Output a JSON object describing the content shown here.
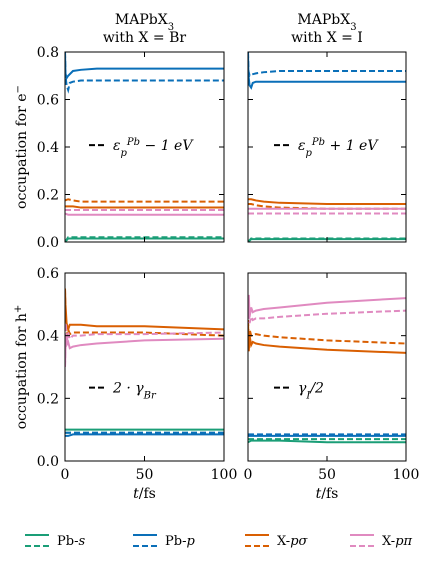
{
  "chart_data": [
    {
      "type": "line",
      "title_line1": "MAPbX3",
      "title_line2": "with X = Br",
      "ylabel": "occupation for e−",
      "annotation": "ε_p^Pb − 1 eV",
      "ylim": [
        0,
        0.8
      ],
      "xlim": [
        0,
        100
      ],
      "yticks": [
        "0.0",
        "0.2",
        "0.4",
        "0.6",
        "0.8"
      ],
      "series": [
        {
          "key": "Pb-s",
          "style": "solid",
          "x": [
            0,
            2,
            5,
            10,
            20,
            50,
            100
          ],
          "y": [
            0.0,
            0.015,
            0.015,
            0.015,
            0.015,
            0.015,
            0.015
          ]
        },
        {
          "key": "Pb-s",
          "style": "dashed",
          "x": [
            0,
            2,
            5,
            10,
            20,
            50,
            100
          ],
          "y": [
            0.0,
            0.02,
            0.02,
            0.02,
            0.02,
            0.02,
            0.02
          ]
        },
        {
          "key": "Pb-p",
          "style": "solid",
          "x": [
            0,
            0.3,
            1,
            2,
            5,
            10,
            20,
            50,
            100
          ],
          "y": [
            0.8,
            0.71,
            0.69,
            0.7,
            0.72,
            0.725,
            0.73,
            0.73,
            0.73
          ]
        },
        {
          "key": "Pb-p",
          "style": "dashed",
          "x": [
            0,
            0.3,
            1,
            2,
            3,
            5,
            10,
            20,
            50,
            100
          ],
          "y": [
            0.8,
            0.7,
            0.66,
            0.64,
            0.67,
            0.675,
            0.68,
            0.68,
            0.68,
            0.68
          ]
        },
        {
          "key": "X-pσ",
          "style": "solid",
          "x": [
            0,
            2,
            5,
            10,
            20,
            50,
            100
          ],
          "y": [
            0.15,
            0.15,
            0.15,
            0.145,
            0.145,
            0.145,
            0.145
          ]
        },
        {
          "key": "X-pσ",
          "style": "dashed",
          "x": [
            0,
            2,
            5,
            10,
            20,
            50,
            100
          ],
          "y": [
            0.175,
            0.18,
            0.175,
            0.17,
            0.17,
            0.17,
            0.17
          ]
        },
        {
          "key": "X-pπ",
          "style": "solid",
          "x": [
            0,
            2,
            5,
            10,
            20,
            50,
            100
          ],
          "y": [
            0.12,
            0.115,
            0.115,
            0.115,
            0.115,
            0.115,
            0.115
          ]
        },
        {
          "key": "X-pπ",
          "style": "dashed",
          "x": [
            0,
            2,
            5,
            10,
            20,
            50,
            100
          ],
          "y": [
            0.135,
            0.135,
            0.135,
            0.135,
            0.135,
            0.135,
            0.135
          ]
        }
      ]
    },
    {
      "type": "line",
      "title_line1": "MAPbX3",
      "title_line2": "with X = I",
      "ylabel": "",
      "annotation": "ε_p^Pb + 1 eV",
      "ylim": [
        0,
        0.8
      ],
      "xlim": [
        0,
        100
      ],
      "yticks": [],
      "series": [
        {
          "key": "Pb-s",
          "style": "solid",
          "x": [
            0,
            2,
            5,
            10,
            20,
            50,
            100
          ],
          "y": [
            0.0,
            0.012,
            0.012,
            0.012,
            0.012,
            0.012,
            0.012
          ]
        },
        {
          "key": "Pb-s",
          "style": "dashed",
          "x": [
            0,
            2,
            5,
            10,
            20,
            50,
            100
          ],
          "y": [
            0.0,
            0.015,
            0.015,
            0.015,
            0.015,
            0.015,
            0.015
          ]
        },
        {
          "key": "Pb-p",
          "style": "solid",
          "x": [
            0,
            0.3,
            1,
            2,
            3,
            5,
            10,
            20,
            50,
            100
          ],
          "y": [
            0.8,
            0.7,
            0.66,
            0.65,
            0.67,
            0.675,
            0.675,
            0.675,
            0.675,
            0.675
          ]
        },
        {
          "key": "Pb-p",
          "style": "dashed",
          "x": [
            0,
            0.3,
            1,
            2,
            5,
            10,
            20,
            50,
            100
          ],
          "y": [
            0.8,
            0.72,
            0.7,
            0.705,
            0.71,
            0.715,
            0.72,
            0.72,
            0.72
          ]
        },
        {
          "key": "X-pσ",
          "style": "solid",
          "x": [
            0,
            2,
            5,
            10,
            20,
            50,
            100
          ],
          "y": [
            0.18,
            0.18,
            0.175,
            0.17,
            0.165,
            0.16,
            0.16
          ]
        },
        {
          "key": "X-pσ",
          "style": "dashed",
          "x": [
            0,
            2,
            5,
            10,
            20,
            50,
            100
          ],
          "y": [
            0.16,
            0.16,
            0.155,
            0.15,
            0.145,
            0.14,
            0.14
          ]
        },
        {
          "key": "X-pπ",
          "style": "solid",
          "x": [
            0,
            2,
            5,
            10,
            20,
            50,
            100
          ],
          "y": [
            0.14,
            0.14,
            0.14,
            0.14,
            0.14,
            0.14,
            0.14
          ]
        },
        {
          "key": "X-pπ",
          "style": "dashed",
          "x": [
            0,
            2,
            5,
            10,
            20,
            50,
            100
          ],
          "y": [
            0.12,
            0.12,
            0.12,
            0.12,
            0.12,
            0.12,
            0.12
          ]
        }
      ]
    },
    {
      "type": "line",
      "title_line1": "",
      "title_line2": "",
      "ylabel": "occupation for h+",
      "annotation": "2 · γ_Br",
      "ylim": [
        0,
        0.6
      ],
      "xlim": [
        0,
        100
      ],
      "yticks": [
        "0.0",
        "0.2",
        "0.4",
        "0.6"
      ],
      "xticks": [
        "0",
        "50",
        "100"
      ],
      "xlabel": "t/fs",
      "series": [
        {
          "key": "Pb-s",
          "style": "solid",
          "x": [
            0,
            2,
            5,
            10,
            20,
            50,
            100
          ],
          "y": [
            0.1,
            0.1,
            0.1,
            0.1,
            0.1,
            0.1,
            0.1
          ]
        },
        {
          "key": "Pb-s",
          "style": "dashed",
          "x": [
            0,
            2,
            5,
            10,
            20,
            50,
            100
          ],
          "y": [
            0.09,
            0.09,
            0.09,
            0.09,
            0.09,
            0.09,
            0.09
          ]
        },
        {
          "key": "Pb-p",
          "style": "solid",
          "x": [
            0,
            2,
            5,
            10,
            20,
            50,
            100
          ],
          "y": [
            0.08,
            0.08,
            0.085,
            0.085,
            0.085,
            0.085,
            0.085
          ]
        },
        {
          "key": "Pb-p",
          "style": "dashed",
          "x": [
            0,
            2,
            5,
            10,
            20,
            50,
            100
          ],
          "y": [
            0.09,
            0.09,
            0.09,
            0.09,
            0.09,
            0.09,
            0.09
          ]
        },
        {
          "key": "X-pσ",
          "style": "solid",
          "x": [
            0,
            0.3,
            1,
            2,
            3,
            5,
            10,
            20,
            50,
            100
          ],
          "y": [
            0.55,
            0.5,
            0.44,
            0.42,
            0.435,
            0.435,
            0.435,
            0.43,
            0.43,
            0.42
          ]
        },
        {
          "key": "X-pσ",
          "style": "dashed",
          "x": [
            0,
            0.3,
            1,
            2,
            3,
            5,
            10,
            20,
            50,
            100
          ],
          "y": [
            0.55,
            0.45,
            0.4,
            0.42,
            0.405,
            0.41,
            0.41,
            0.41,
            0.41,
            0.4
          ]
        },
        {
          "key": "X-pπ",
          "style": "solid",
          "x": [
            0,
            0.5,
            1,
            2,
            3,
            5,
            10,
            20,
            50,
            100
          ],
          "y": [
            0.3,
            0.4,
            0.37,
            0.38,
            0.36,
            0.365,
            0.37,
            0.375,
            0.385,
            0.39
          ]
        },
        {
          "key": "X-pπ",
          "style": "dashed",
          "x": [
            0,
            0.5,
            1,
            2,
            3,
            5,
            10,
            20,
            50,
            100
          ],
          "y": [
            0.3,
            0.44,
            0.38,
            0.41,
            0.39,
            0.4,
            0.4,
            0.405,
            0.405,
            0.41
          ]
        }
      ]
    },
    {
      "type": "line",
      "title_line1": "",
      "title_line2": "",
      "ylabel": "",
      "annotation": "γ_I/2",
      "ylim": [
        0,
        0.6
      ],
      "xlim": [
        0,
        100
      ],
      "yticks": [],
      "xticks": [
        "0",
        "50",
        "100"
      ],
      "xlabel": "t/fs",
      "series": [
        {
          "key": "Pb-s",
          "style": "solid",
          "x": [
            0,
            2,
            5,
            10,
            20,
            50,
            100
          ],
          "y": [
            0.06,
            0.065,
            0.065,
            0.065,
            0.065,
            0.06,
            0.06
          ]
        },
        {
          "key": "Pb-s",
          "style": "dashed",
          "x": [
            0,
            2,
            5,
            10,
            20,
            50,
            100
          ],
          "y": [
            0.07,
            0.07,
            0.07,
            0.07,
            0.07,
            0.07,
            0.07
          ]
        },
        {
          "key": "Pb-p",
          "style": "solid",
          "x": [
            0,
            2,
            5,
            10,
            20,
            50,
            100
          ],
          "y": [
            0.08,
            0.08,
            0.08,
            0.08,
            0.08,
            0.08,
            0.08
          ]
        },
        {
          "key": "Pb-p",
          "style": "dashed",
          "x": [
            0,
            2,
            5,
            10,
            20,
            50,
            100
          ],
          "y": [
            0.085,
            0.085,
            0.085,
            0.085,
            0.085,
            0.085,
            0.085
          ]
        },
        {
          "key": "X-pσ",
          "style": "solid",
          "x": [
            0,
            0.5,
            1,
            2,
            3,
            5,
            10,
            20,
            50,
            100
          ],
          "y": [
            0.45,
            0.35,
            0.4,
            0.37,
            0.38,
            0.375,
            0.37,
            0.365,
            0.355,
            0.345
          ]
        },
        {
          "key": "X-pσ",
          "style": "dashed",
          "x": [
            0,
            0.5,
            1,
            2,
            3,
            5,
            10,
            20,
            50,
            100
          ],
          "y": [
            0.45,
            0.38,
            0.42,
            0.4,
            0.4,
            0.405,
            0.4,
            0.395,
            0.385,
            0.375
          ]
        },
        {
          "key": "X-pπ",
          "style": "solid",
          "x": [
            0,
            0.5,
            1,
            2,
            3,
            5,
            10,
            20,
            50,
            100
          ],
          "y": [
            0.47,
            0.53,
            0.46,
            0.49,
            0.475,
            0.48,
            0.485,
            0.49,
            0.505,
            0.52
          ]
        },
        {
          "key": "X-pπ",
          "style": "dashed",
          "x": [
            0,
            0.5,
            1,
            2,
            3,
            5,
            10,
            20,
            50,
            100
          ],
          "y": [
            0.47,
            0.5,
            0.44,
            0.46,
            0.45,
            0.455,
            0.455,
            0.46,
            0.47,
            0.48
          ]
        }
      ]
    }
  ],
  "colors": {
    "Pb-s": "#1a9e77",
    "Pb-p": "#0a6fb8",
    "X-pσ": "#d95f02",
    "X-pπ": "#e08ac0"
  },
  "legend": [
    {
      "key": "Pb-s",
      "label": "Pb-s"
    },
    {
      "key": "Pb-p",
      "label": "Pb-p"
    },
    {
      "key": "X-pσ",
      "label": "X-pσ"
    },
    {
      "key": "X-pπ",
      "label": "X-pπ"
    }
  ]
}
